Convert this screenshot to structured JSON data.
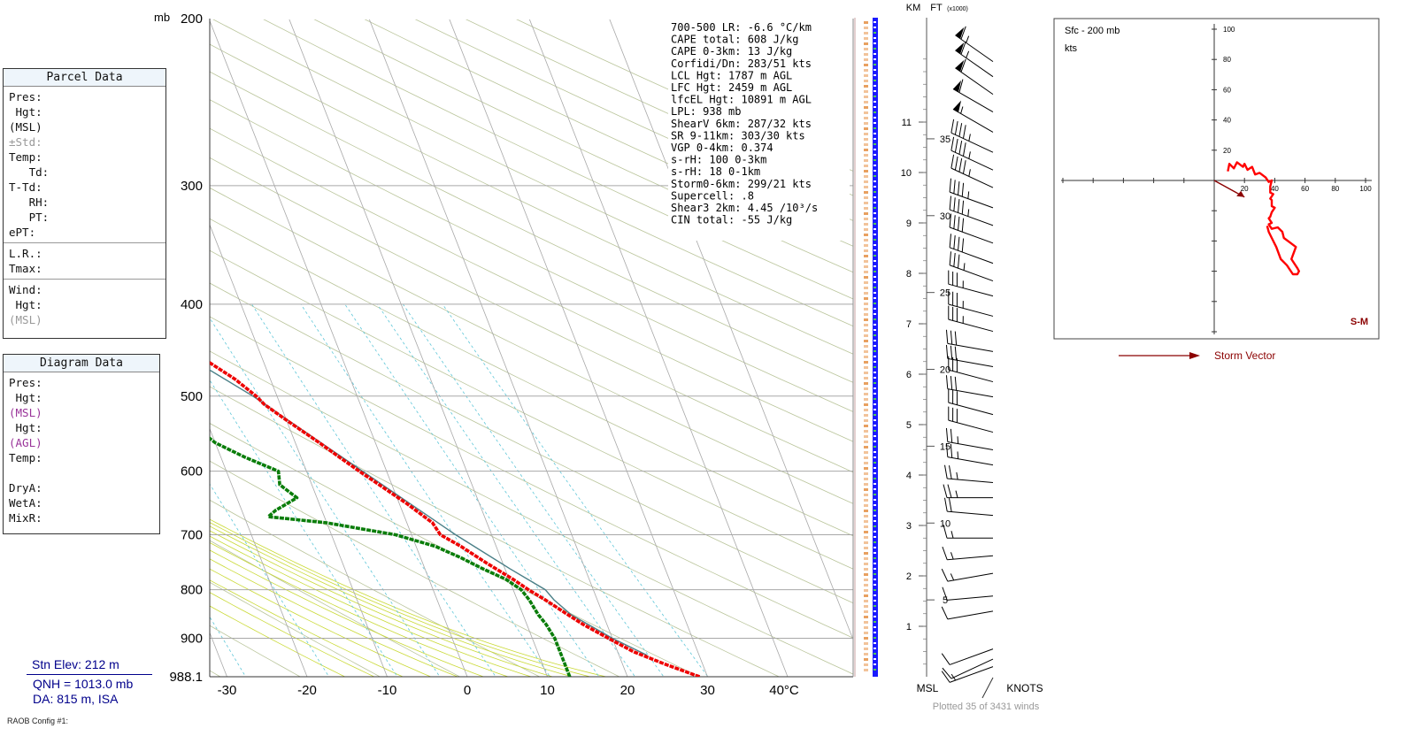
{
  "parcel_panel": {
    "title": "Parcel Data",
    "fields": [
      "Pres:",
      "Hgt:",
      "(MSL)",
      "±Std:",
      "Temp:",
      "Td:",
      "T-Td:",
      "RH:",
      "PT:",
      "ePT:"
    ],
    "fields2": [
      "L.R.:",
      "Tmax:"
    ],
    "fields3": [
      "Wind:",
      "Hgt:",
      "(MSL)"
    ]
  },
  "diagram_panel": {
    "title": "Diagram Data",
    "fields": [
      "Pres:",
      "Hgt:",
      "(MSL)",
      "Hgt:",
      "(AGL)",
      "Temp:"
    ],
    "fields2": [
      "DryA:",
      "WetA:",
      "MixR:"
    ]
  },
  "station": {
    "elev": "Stn Elev: 212 m",
    "qnh": "QNH = 1013.0 mb",
    "da": "DA: 815 m, ISA",
    "config": "RAOB Config #1:"
  },
  "indices": [
    "700-500 LR:   -6.6 °C/km",
    "CAPE total:    608 J/kg",
    "CAPE 0-3km:     13 J/kg",
    "Corfidi/Dn: 283/51 kts",
    "  LCL Hgt:  1787 m AGL",
    "  LFC Hgt:  2459 m AGL",
    " lfcEL Hgt: 10891 m AGL",
    "      LPL:   938 mb",
    "ShearV 6km: 287/32 kts",
    " SR 9-11km: 303/30 kts",
    " VGP 0-4km: 0.374",
    "     s-rH:   100  0-3km",
    "     s-rH:    18  0-1km",
    "Storm0-6km: 299/21 kts",
    " Supercell:    .8",
    "Shear3 2km:  4.45 /10³/s",
    " CIN total:    -55 J/kg"
  ],
  "skewt_labels": {
    "pressure_unit": "mb",
    "temp_unit_label": "40°C",
    "km_label": "KM",
    "ft_label": "FT",
    "ft_sub": "(x1000)",
    "msl_label": "MSL",
    "knots_label": "KNOTS",
    "winds_note": "Plotted 35 of 3431 winds"
  },
  "hodograph": {
    "title": "Sfc - 200 mb",
    "unit": "kts",
    "sm_label": "S-M",
    "legend": "Storm Vector"
  },
  "colors": {
    "temperature": "#ee0000",
    "dewpoint": "#0a7d0a",
    "parcel": "#4a7f87",
    "isobar": "#a8a8a8",
    "isotherm": "#a8a8a8",
    "dry_adiabat": "#b9c49a",
    "moist_adiabat": "#c9d934",
    "mixing_ratio": "#5dc6d8",
    "hodo_trace": "#ff0000",
    "storm_vector": "#8b0000"
  },
  "chart_data": [
    {
      "type": "line",
      "name": "skew-t",
      "pressure_levels": [
        200,
        300,
        400,
        500,
        600,
        700,
        800,
        900,
        988.1
      ],
      "xticks": [
        -30,
        -20,
        -10,
        0,
        10,
        20,
        30
      ],
      "ylim": [
        988.1,
        200
      ],
      "xlim": [
        -30,
        40
      ],
      "series": [
        {
          "key": "temperature",
          "p": [
            988.1,
            960,
            930,
            900,
            870,
            850,
            820,
            800,
            780,
            750,
            720,
            700,
            680,
            650,
            620,
            600,
            580,
            560,
            530,
            510,
            500,
            480,
            460,
            440,
            420,
            410,
            400,
            380,
            360,
            340,
            320,
            300,
            290,
            280,
            270,
            260,
            250,
            240,
            230,
            220,
            210,
            200
          ],
          "t": [
            29.0,
            25.5,
            22.0,
            19.5,
            17.0,
            15.6,
            13.5,
            11.9,
            10.5,
            8.0,
            5.6,
            3.6,
            3.2,
            1.0,
            -1.6,
            -3.4,
            -5.2,
            -7.0,
            -10.0,
            -12.0,
            -12.6,
            -14.4,
            -16.9,
            -19.6,
            -22.6,
            -24.0,
            -24.6,
            -27.2,
            -30.5,
            -34.2,
            -37.5,
            -41.0,
            -42.8,
            -44.2,
            -46.0,
            -48.0,
            -50.4,
            -53.2,
            -55.4,
            -57.2,
            -58.2,
            -59.4
          ]
        },
        {
          "key": "dewpoint",
          "p": [
            988.1,
            960,
            930,
            900,
            870,
            850,
            820,
            800,
            780,
            760,
            740,
            720,
            700,
            690,
            680,
            670,
            660,
            640,
            620,
            600,
            580,
            560,
            540,
            520,
            510,
            505,
            500,
            490,
            470,
            460,
            440,
            420,
            400,
            390,
            380,
            370,
            360,
            340,
            320,
            300,
            290,
            280,
            270,
            260,
            250,
            240,
            230,
            220,
            210,
            200
          ],
          "td": [
            12.8,
            12.8,
            12.8,
            12.8,
            12.4,
            11.9,
            11.5,
            11.0,
            9.6,
            7.2,
            5.0,
            2.4,
            -2.0,
            -6.0,
            -10.0,
            -17.0,
            -15.8,
            -12.5,
            -14.0,
            -13.5,
            -17.0,
            -20.0,
            -21.6,
            -23.6,
            -27.3,
            -43.0,
            -55.0,
            -56.2,
            -56.6,
            -56.4,
            -52.0,
            -48.2,
            -54.0,
            -59.6,
            -62.8,
            -61.0,
            -58.0,
            -57.4,
            -60.8,
            -63.4,
            -67.4,
            -66.8,
            -70.4,
            -75.2,
            -80.4,
            -82.0,
            -83.4,
            -84.0,
            -81.2,
            -80.5
          ]
        },
        {
          "key": "parcel",
          "p": [
            938,
            900,
            850,
            820,
            800,
            760,
            700,
            600,
            500,
            400,
            300,
            250,
            200
          ],
          "t": [
            23.5,
            20.0,
            16.0,
            14.6,
            14.0,
            10.6,
            5.5,
            -3.0,
            -13.0,
            -27.5,
            -49.0,
            -59.0,
            -63.0
          ]
        }
      ],
      "km_ticks": [
        1,
        2,
        3,
        4,
        5,
        6,
        7,
        8,
        9,
        10,
        11
      ],
      "ft_ticks": [
        5,
        10,
        15,
        20,
        25,
        30,
        35
      ],
      "wind_barbs": [
        {
          "h": 0.2,
          "dir": 250,
          "spd": 15
        },
        {
          "h": 0.35,
          "dir": 245,
          "spd": 12
        },
        {
          "h": 0.55,
          "dir": 250,
          "spd": 10
        },
        {
          "h": 1.3,
          "dir": 260,
          "spd": 10
        },
        {
          "h": 1.6,
          "dir": 265,
          "spd": 12
        },
        {
          "h": 2.05,
          "dir": 260,
          "spd": 15
        },
        {
          "h": 2.4,
          "dir": 265,
          "spd": 15
        },
        {
          "h": 2.75,
          "dir": 270,
          "spd": 15
        },
        {
          "h": 3.2,
          "dir": 275,
          "spd": 20
        },
        {
          "h": 3.55,
          "dir": 270,
          "spd": 25
        },
        {
          "h": 3.85,
          "dir": 275,
          "spd": 25
        },
        {
          "h": 4.2,
          "dir": 280,
          "spd": 25
        },
        {
          "h": 4.5,
          "dir": 280,
          "spd": 25
        },
        {
          "h": 4.85,
          "dir": 285,
          "spd": 30
        },
        {
          "h": 5.2,
          "dir": 285,
          "spd": 30
        },
        {
          "h": 5.55,
          "dir": 280,
          "spd": 30
        },
        {
          "h": 5.85,
          "dir": 285,
          "spd": 30
        },
        {
          "h": 6.15,
          "dir": 280,
          "spd": 30
        },
        {
          "h": 6.45,
          "dir": 280,
          "spd": 30
        },
        {
          "h": 6.85,
          "dir": 285,
          "spd": 35
        },
        {
          "h": 7.15,
          "dir": 285,
          "spd": 35
        },
        {
          "h": 7.55,
          "dir": 285,
          "spd": 35
        },
        {
          "h": 7.85,
          "dir": 290,
          "spd": 35
        },
        {
          "h": 8.2,
          "dir": 290,
          "spd": 40
        },
        {
          "h": 8.6,
          "dir": 290,
          "spd": 40
        },
        {
          "h": 8.95,
          "dir": 290,
          "spd": 45
        },
        {
          "h": 9.3,
          "dir": 290,
          "spd": 45
        },
        {
          "h": 9.7,
          "dir": 295,
          "spd": 45
        },
        {
          "h": 10.05,
          "dir": 295,
          "spd": 45
        },
        {
          "h": 10.4,
          "dir": 295,
          "spd": 45
        },
        {
          "h": 10.8,
          "dir": 300,
          "spd": 55
        },
        {
          "h": 11.2,
          "dir": 300,
          "spd": 60
        },
        {
          "h": 11.55,
          "dir": 305,
          "spd": 60
        },
        {
          "h": 11.9,
          "dir": 305,
          "spd": 65
        },
        {
          "h": 12.2,
          "dir": 305,
          "spd": 65
        }
      ]
    },
    {
      "type": "line",
      "name": "hodograph",
      "title": "Sfc - 200 mb",
      "unit": "kts",
      "x_ticks": [
        20,
        40,
        60,
        80,
        100
      ],
      "y_ticks": [
        20,
        40,
        60,
        80,
        100
      ],
      "xlim": [
        -100,
        100
      ],
      "ylim": [
        -100,
        100
      ],
      "u": [
        9,
        10,
        13,
        15,
        19,
        20,
        22,
        25,
        27,
        30,
        34,
        36,
        38,
        37,
        37,
        39,
        37,
        38,
        38,
        40,
        38,
        37,
        36,
        38,
        36,
        38,
        42,
        45,
        46,
        50,
        54,
        51,
        55,
        56,
        55,
        52,
        48,
        44,
        41,
        38,
        36,
        35
      ],
      "v": [
        6,
        11,
        8,
        12,
        9,
        11,
        7,
        9,
        4,
        5,
        2,
        -1,
        0,
        -4,
        -8,
        -9,
        -12,
        -13,
        -17,
        -18,
        -21,
        -24,
        -25,
        -28,
        -29,
        -32,
        -31,
        -34,
        -38,
        -41,
        -44,
        -52,
        -58,
        -60,
        -62,
        -62,
        -56,
        -52,
        -44,
        -38,
        -34,
        -30
      ],
      "storm_vector": {
        "u": 20,
        "v": -11
      }
    }
  ]
}
